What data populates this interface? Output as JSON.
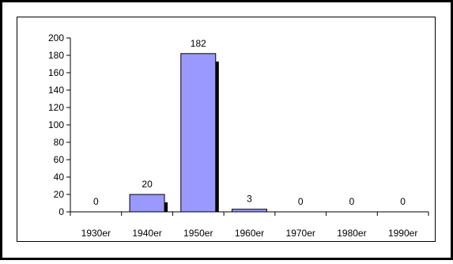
{
  "chart_data": {
    "type": "bar",
    "title": "",
    "xlabel": "",
    "ylabel": "",
    "categories": [
      "1930er",
      "1940er",
      "1950er",
      "1960er",
      "1970er",
      "1980er",
      "1990er"
    ],
    "values": [
      0,
      20,
      182,
      3,
      0,
      0,
      0
    ],
    "data_labels": [
      "0",
      "20",
      "182",
      "3",
      "0",
      "0",
      "0"
    ],
    "ylim": [
      0,
      200
    ],
    "yticks": [
      0,
      20,
      40,
      60,
      80,
      100,
      120,
      140,
      160,
      180,
      200
    ],
    "grid": false,
    "legend": "none",
    "colors": {
      "bar_fill": "#9999ff",
      "bar_stroke": "#000000",
      "bar_shadow": "#000000",
      "axis": "#000000",
      "frame": "#000000"
    }
  }
}
